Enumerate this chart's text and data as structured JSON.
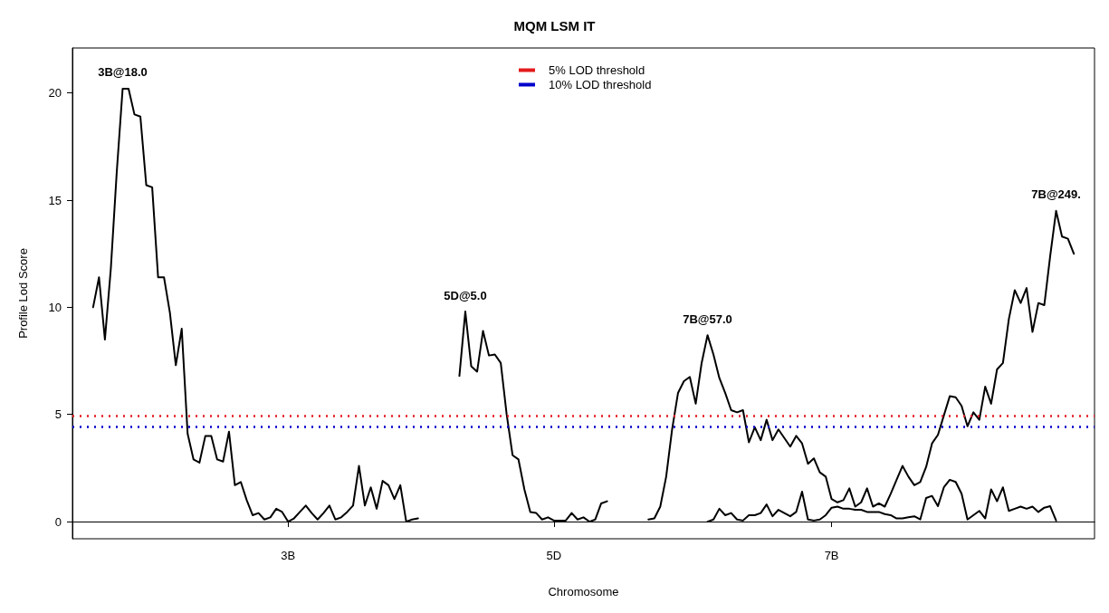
{
  "chart_data": {
    "type": "line",
    "title": "MQM LSM IT",
    "xlabel": "Chromosome",
    "ylabel": "Profile Lod Score",
    "ylim": [
      -0.8,
      22.1
    ],
    "categories": [
      null,
      null,
      null,
      null,
      null,
      null,
      null,
      null,
      null,
      null,
      null,
      null,
      null,
      null,
      null,
      null,
      null,
      null,
      null,
      null,
      null,
      null,
      null,
      null,
      null,
      null,
      null,
      null,
      null,
      null,
      null,
      null,
      null,
      null,
      null,
      null,
      "3B",
      null,
      null,
      null,
      null,
      null,
      null,
      null,
      null,
      null,
      null,
      null,
      null,
      null,
      null,
      null,
      null,
      null,
      null,
      null,
      null,
      null,
      null,
      null,
      null,
      null,
      null,
      null,
      null,
      null,
      null,
      null,
      null,
      null,
      null,
      null,
      null,
      null,
      null,
      null,
      null,
      null,
      null,
      null,
      null,
      "5D",
      null,
      null,
      null,
      null,
      null,
      null,
      null,
      null,
      null,
      null,
      null,
      null,
      null,
      null,
      null,
      null,
      null,
      null,
      null,
      null,
      null,
      null,
      null,
      null,
      null,
      null,
      null,
      null,
      null,
      null,
      null,
      null,
      null,
      null,
      null,
      null,
      null,
      null,
      null,
      null,
      null,
      null,
      null,
      null,
      null,
      null,
      "7B",
      null,
      null,
      null,
      null,
      null,
      null,
      null,
      null,
      null,
      null,
      null,
      null,
      null,
      null,
      null,
      null,
      null,
      null,
      null,
      null,
      null,
      null,
      null,
      null,
      null,
      null,
      null,
      null,
      null,
      null,
      null,
      null,
      null,
      null,
      null,
      null,
      null,
      null,
      null,
      null,
      null,
      null,
      null,
      null
    ],
    "yticks": [
      0,
      5,
      10,
      15,
      20
    ],
    "grid": false,
    "legend": "top",
    "marker": "none",
    "line_style": "solid",
    "series": [
      {
        "color": "#000000",
        "values": [
          null,
          null,
          null,
          10.0,
          11.4,
          8.5,
          11.8,
          16.3,
          20.2,
          20.2,
          19.0,
          18.9,
          15.7,
          15.6,
          11.4,
          11.4,
          9.75,
          7.3,
          9.0,
          4.1,
          2.9,
          2.75,
          4.0,
          4.0,
          2.9,
          2.8,
          4.2,
          1.7,
          1.85,
          1.0,
          0.3,
          0.4,
          0.1,
          0.2,
          0.6,
          0.45,
          0.0,
          0.15,
          0.45,
          0.75,
          0.4,
          0.1,
          0.4,
          0.75,
          0.1,
          0.2,
          0.45,
          0.75,
          2.6,
          0.75,
          1.6,
          0.6,
          1.9,
          1.7,
          1.05,
          1.7,
          0.0,
          0.1,
          0.15,
          null,
          null,
          null,
          null,
          null,
          null,
          null,
          null,
          null,
          null,
          null,
          null,
          null,
          null,
          null,
          null,
          null,
          null,
          null,
          null,
          null,
          null,
          null,
          null,
          null,
          null,
          null,
          null,
          null,
          null,
          null,
          null,
          null,
          null,
          null,
          null,
          null,
          null,
          null,
          null,
          null,
          null,
          null,
          null,
          null,
          null,
          null,
          null,
          null,
          null,
          null,
          null,
          null,
          null,
          null,
          null,
          null,
          null,
          null,
          null,
          null,
          null,
          null,
          null,
          null,
          null,
          null,
          null,
          null,
          null,
          null,
          null,
          null,
          null,
          null,
          null,
          null,
          null,
          null,
          null,
          null,
          null,
          null,
          null,
          null,
          null,
          null,
          null,
          null,
          null,
          null,
          null,
          null,
          null,
          null,
          null,
          null,
          null,
          null,
          null,
          null,
          null,
          null,
          null,
          null,
          null,
          null,
          null,
          null,
          null,
          null,
          null,
          null,
          null
        ]
      },
      {
        "color": "#000000",
        "values": [
          null,
          null,
          null,
          null,
          null,
          null,
          null,
          null,
          null,
          null,
          null,
          null,
          null,
          null,
          null,
          null,
          null,
          null,
          null,
          null,
          null,
          null,
          null,
          null,
          null,
          null,
          null,
          null,
          null,
          null,
          null,
          null,
          null,
          null,
          null,
          null,
          null,
          null,
          null,
          null,
          null,
          null,
          null,
          null,
          null,
          null,
          null,
          null,
          null,
          null,
          null,
          null,
          null,
          null,
          null,
          null,
          null,
          null,
          null,
          null,
          null,
          null,
          null,
          null,
          null,
          6.8,
          9.8,
          7.25,
          7.0,
          8.9,
          7.75,
          7.8,
          7.4,
          5.0,
          3.1,
          2.9,
          1.5,
          0.45,
          0.4,
          0.1,
          0.2,
          0.05,
          0.05,
          0.05,
          0.4,
          0.1,
          0.2,
          0.0,
          0.1,
          0.85,
          0.95,
          null,
          null,
          null,
          null,
          null,
          null,
          null,
          null,
          null,
          null,
          null,
          null,
          null,
          null,
          null,
          null,
          null,
          null,
          null,
          null,
          null,
          null,
          null,
          null,
          null,
          null,
          null,
          null,
          null,
          null,
          null,
          null,
          null,
          null,
          null,
          null,
          null,
          null,
          null,
          null,
          null,
          null,
          null,
          null,
          null,
          null,
          null,
          null,
          null,
          null,
          null,
          null,
          null,
          null,
          null,
          null,
          null,
          null,
          null,
          null,
          null,
          null,
          null,
          null,
          null,
          null,
          null,
          null,
          null,
          null,
          null,
          null,
          null,
          null,
          null,
          null,
          null,
          null,
          null,
          null,
          null,
          null
        ]
      },
      {
        "color": "#000000",
        "values": [
          null,
          null,
          null,
          null,
          null,
          null,
          null,
          null,
          null,
          null,
          null,
          null,
          null,
          null,
          null,
          null,
          null,
          null,
          null,
          null,
          null,
          null,
          null,
          null,
          null,
          null,
          null,
          null,
          null,
          null,
          null,
          null,
          null,
          null,
          null,
          null,
          null,
          null,
          null,
          null,
          null,
          null,
          null,
          null,
          null,
          null,
          null,
          null,
          null,
          null,
          null,
          null,
          null,
          null,
          null,
          null,
          null,
          null,
          null,
          null,
          null,
          null,
          null,
          null,
          null,
          null,
          null,
          null,
          null,
          null,
          null,
          null,
          null,
          null,
          null,
          null,
          null,
          null,
          null,
          null,
          null,
          null,
          null,
          null,
          null,
          null,
          null,
          null,
          null,
          null,
          null,
          null,
          null,
          null,
          null,
          null,
          null,
          0.1,
          0.15,
          0.7,
          2.1,
          4.3,
          6.0,
          6.55,
          6.75,
          5.5,
          7.4,
          8.7,
          7.8,
          6.7,
          6.0,
          5.2,
          5.1,
          5.2,
          3.7,
          4.4,
          3.8,
          4.75,
          3.8,
          4.3,
          3.9,
          3.5,
          4.0,
          3.65,
          2.7,
          2.95,
          2.3,
          2.1,
          1.05,
          0.9,
          1.0,
          1.55,
          0.7,
          0.9,
          1.55,
          0.7,
          0.85,
          0.7,
          1.3,
          1.95,
          2.6,
          2.1,
          1.7,
          1.85,
          2.55,
          3.65,
          4.05,
          4.95,
          5.85,
          5.8,
          5.4,
          4.45,
          5.1,
          4.75,
          6.3,
          5.5,
          7.1,
          7.4,
          9.45,
          10.8,
          10.2,
          10.9,
          8.85,
          10.2,
          10.1,
          12.4,
          14.5,
          13.3,
          13.2,
          12.5,
          null,
          null,
          null
        ]
      },
      {
        "color": "#000000",
        "values": [
          null,
          null,
          null,
          null,
          null,
          null,
          null,
          null,
          null,
          null,
          null,
          null,
          null,
          null,
          null,
          null,
          null,
          null,
          null,
          null,
          null,
          null,
          null,
          null,
          null,
          null,
          null,
          null,
          null,
          null,
          null,
          null,
          null,
          null,
          null,
          null,
          null,
          null,
          null,
          null,
          null,
          null,
          null,
          null,
          null,
          null,
          null,
          null,
          null,
          null,
          null,
          null,
          null,
          null,
          null,
          null,
          null,
          null,
          null,
          null,
          null,
          null,
          null,
          null,
          null,
          null,
          null,
          null,
          null,
          null,
          null,
          null,
          null,
          null,
          null,
          null,
          null,
          null,
          null,
          null,
          null,
          null,
          null,
          null,
          null,
          null,
          null,
          null,
          null,
          null,
          null,
          null,
          null,
          null,
          null,
          null,
          null,
          null,
          null,
          null,
          null,
          null,
          null,
          null,
          null,
          null,
          null,
          0.0,
          0.1,
          0.6,
          0.3,
          0.4,
          0.1,
          0.05,
          0.3,
          0.3,
          0.4,
          0.8,
          0.25,
          0.55,
          0.4,
          0.25,
          0.45,
          1.4,
          0.1,
          0.05,
          0.1,
          0.3,
          0.65,
          0.7,
          0.6,
          0.6,
          0.55,
          0.55,
          0.45,
          0.45,
          0.45,
          0.35,
          0.3,
          0.15,
          0.15,
          0.2,
          0.25,
          0.1,
          1.1,
          1.2,
          0.72,
          1.6,
          1.95,
          1.85,
          1.3,
          0.1,
          0.3,
          0.5,
          0.15,
          1.5,
          0.95,
          1.6,
          0.5,
          0.6,
          0.7,
          0.6,
          0.7,
          0.45,
          0.65,
          0.72,
          0.05,
          null,
          null,
          null,
          null,
          null,
          null
        ]
      }
    ],
    "ref_lines": [
      {
        "axis": "y",
        "value": 4.95,
        "label": "5% LOD threshold",
        "color": "#e31a1c",
        "line_style": "dotted"
      },
      {
        "axis": "y",
        "value": 4.42,
        "label": "10% LOD threshold",
        "color": "#0000cc",
        "line_style": "dotted"
      }
    ],
    "annotations": [
      "3B@18.0",
      "5D@5.0",
      "7B@57.0",
      "7B@249."
    ]
  }
}
